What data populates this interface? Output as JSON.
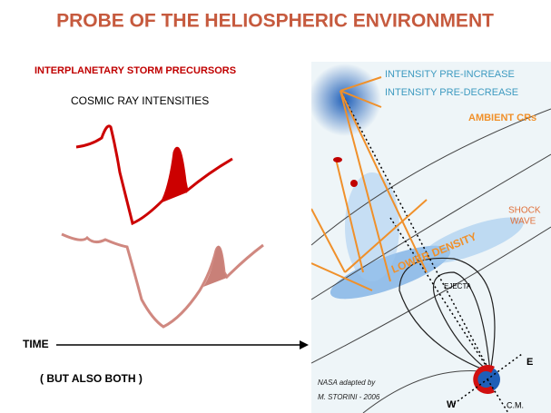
{
  "title": "PROBE OF THE HELIOSPHERIC ENVIRONMENT",
  "left_panel": {
    "heading": "INTERPLANETARY STORM PRECURSORS",
    "subheading": "COSMIC RAY INTENSITIES",
    "axis_label": "TIME",
    "note": "( BUT ALSO BOTH )"
  },
  "right_panel": {
    "labels": [
      "INTENSITY PRE-INCREASE",
      "INTENSITY PRE-DECREASE",
      "AMBIENT CRs",
      "LOWER DENSITY",
      "EJECTA",
      "E",
      "W",
      "C.M."
    ],
    "shock_wave": [
      "SHOCK",
      "WAVE"
    ],
    "credit": [
      "NASA adapted by",
      "M. STORINI - 2006"
    ]
  }
}
